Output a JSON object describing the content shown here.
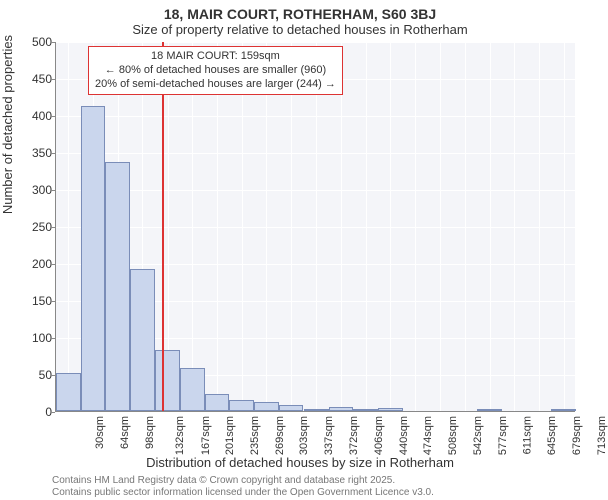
{
  "title": "18, MAIR COURT, ROTHERHAM, S60 3BJ",
  "subtitle": "Size of property relative to detached houses in Rotherham",
  "xlabel": "Distribution of detached houses by size in Rotherham",
  "ylabel": "Number of detached properties",
  "footer_line1": "Contains HM Land Registry data © Crown copyright and database right 2025.",
  "footer_line2": "Contains public sector information licensed under the Open Government Licence v3.0.",
  "annotation": {
    "line1": "18 MAIR COURT: 159sqm",
    "line2": "← 80% of detached houses are smaller (960)",
    "line3": "20% of semi-detached houses are larger (244) →"
  },
  "chart": {
    "type": "histogram",
    "background_color": "#f4f5f9",
    "grid_color": "#ffffff",
    "bar_fill": "#cad6ed",
    "bar_stroke": "#7a8db8",
    "refline_color": "#d33333",
    "axis_color": "#888888",
    "text_color": "#333333",
    "footer_color": "#777777",
    "ylim": [
      0,
      500
    ],
    "ytick_step": 50,
    "xrange": [
      13,
      730
    ],
    "refline_x": 159,
    "x_ticks": [
      30,
      64,
      98,
      132,
      167,
      201,
      235,
      269,
      303,
      337,
      372,
      406,
      440,
      474,
      508,
      542,
      577,
      611,
      645,
      679,
      713
    ],
    "x_tick_suffix": "sqm",
    "bar_width_sqm": 34,
    "bars": [
      {
        "x": 30,
        "y": 52
      },
      {
        "x": 64,
        "y": 412
      },
      {
        "x": 98,
        "y": 337
      },
      {
        "x": 132,
        "y": 192
      },
      {
        "x": 167,
        "y": 83
      },
      {
        "x": 201,
        "y": 58
      },
      {
        "x": 235,
        "y": 23
      },
      {
        "x": 269,
        "y": 15
      },
      {
        "x": 303,
        "y": 12
      },
      {
        "x": 337,
        "y": 8
      },
      {
        "x": 372,
        "y": 3
      },
      {
        "x": 406,
        "y": 6
      },
      {
        "x": 440,
        "y": 3
      },
      {
        "x": 474,
        "y": 4
      },
      {
        "x": 508,
        "y": 0
      },
      {
        "x": 542,
        "y": 0
      },
      {
        "x": 577,
        "y": 0
      },
      {
        "x": 611,
        "y": 2
      },
      {
        "x": 645,
        "y": 0
      },
      {
        "x": 679,
        "y": 0
      },
      {
        "x": 713,
        "y": 2
      }
    ]
  }
}
